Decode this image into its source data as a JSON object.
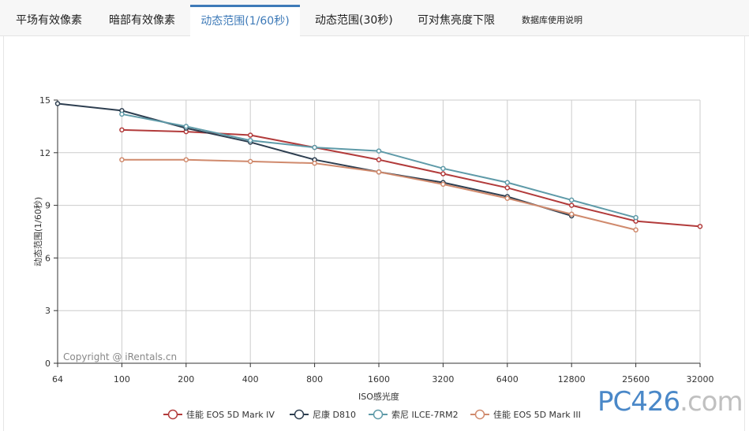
{
  "tabs": [
    {
      "label": "平场有效像素",
      "active": false
    },
    {
      "label": "暗部有效像素",
      "active": false
    },
    {
      "label": "动态范围(1/60秒)",
      "active": true
    },
    {
      "label": "动态范围(30秒)",
      "active": false
    },
    {
      "label": "可对焦亮度下限",
      "active": false
    },
    {
      "label": "数据库使用说明",
      "active": false
    }
  ],
  "copyright": "Copyright @ iRentals.cn",
  "watermark": {
    "a": "PC",
    "b": "426",
    "c": ".com"
  },
  "colors": {
    "canon_5d4": "#b23b3b",
    "nikon_d810": "#2d3e50",
    "sony_a7r2": "#5e9aa8",
    "canon_5d3": "#d08a6d",
    "grid": "#cccccc",
    "active_tab": "#3e7ab8"
  },
  "chart_data": {
    "type": "line",
    "title": "",
    "xlabel": "ISO感光度",
    "ylabel": "动态范围(1/60秒)",
    "x_categories": [
      "64",
      "100",
      "200",
      "400",
      "800",
      "1600",
      "3200",
      "6400",
      "12800",
      "25600",
      "32000"
    ],
    "y_ticks": [
      "0",
      "3",
      "6",
      "9",
      "12",
      "15"
    ],
    "ylim": [
      0,
      15
    ],
    "grid": true,
    "legend_position": "bottom",
    "series": [
      {
        "name": "佳能 EOS 5D Mark IV",
        "color_key": "canon_5d4",
        "values": [
          null,
          13.3,
          13.2,
          13.0,
          12.3,
          11.6,
          10.8,
          10.0,
          9.0,
          8.1,
          7.8
        ]
      },
      {
        "name": "尼康 D810",
        "color_key": "nikon_d810",
        "values": [
          14.8,
          14.4,
          13.4,
          12.6,
          11.6,
          10.9,
          10.3,
          9.5,
          8.4,
          null,
          null
        ]
      },
      {
        "name": "索尼 ILCE-7RM2",
        "color_key": "sony_a7r2",
        "values": [
          null,
          14.2,
          13.5,
          12.7,
          12.3,
          12.1,
          11.1,
          10.3,
          9.3,
          8.3,
          null
        ]
      },
      {
        "name": "佳能 EOS 5D Mark III",
        "color_key": "canon_5d3",
        "values": [
          null,
          11.6,
          11.6,
          11.5,
          11.4,
          10.9,
          10.2,
          9.4,
          8.5,
          7.6,
          null
        ]
      }
    ]
  }
}
